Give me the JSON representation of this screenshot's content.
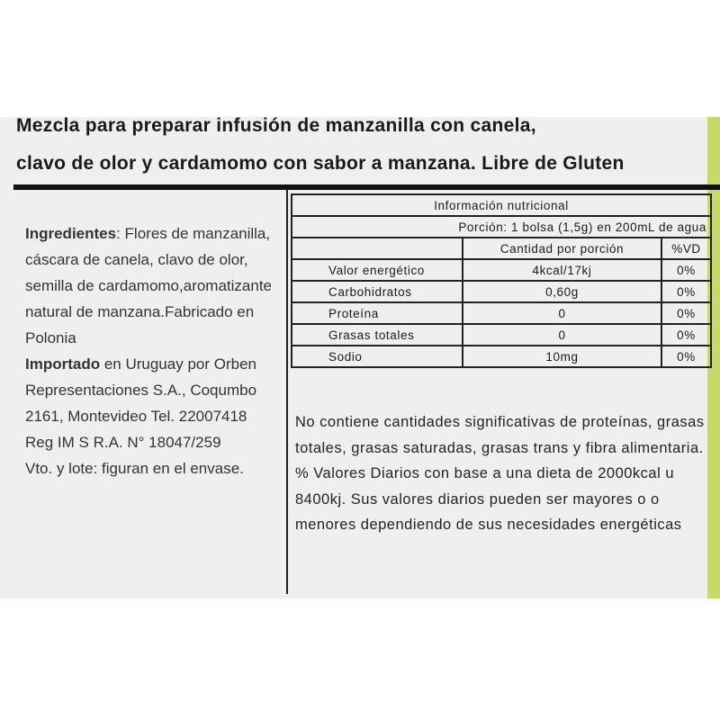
{
  "title_lines": [
    "Mezcla para preparar infusión de manzanilla con canela,",
    "clavo de olor y cardamomo con sabor a manzana. Libre de Gluten"
  ],
  "ingredients": {
    "label": "Ingredientes",
    "text": ": Flores de manzanilla, cáscara de canela, clavo de olor, semilla de cardamomo,aromatizante natural de manzana.Fabricado en Polonia"
  },
  "importer": {
    "label": "Importado",
    "text": " en Uruguay por Orben Representaciones S.A., Coqumbo 2161, Montevideo Tel. 22007418"
  },
  "reg": "Reg IM S R.A. N° 18047/259",
  "vto": "Vto. y lote: figuran en el envase.",
  "nutrition": {
    "title": "Información nutricional",
    "portion": "Porción: 1 bolsa (1,5g) en 200mL de agua",
    "headers": [
      "",
      "Cantidad por porción",
      "%VD"
    ],
    "rows": [
      [
        "Valor energético",
        "4kcal/17kj",
        "0%"
      ],
      [
        "Carbohidratos",
        "0,60g",
        "0%"
      ],
      [
        "Proteína",
        "0",
        "0%"
      ],
      [
        "Grasas totales",
        "0",
        "0%"
      ],
      [
        "Sodio",
        "10mg",
        "0%"
      ]
    ]
  },
  "note": "No contiene cantidades significativas de proteínas, grasas totales, grasas saturadas, grasas trans y fibra alimentaria. % Valores Diarios con base a una dieta de 2000kcal u 8400kj. Sus valores diarios pueden ser mayores o o menores dependiendo de sus necesidades energéticas"
}
